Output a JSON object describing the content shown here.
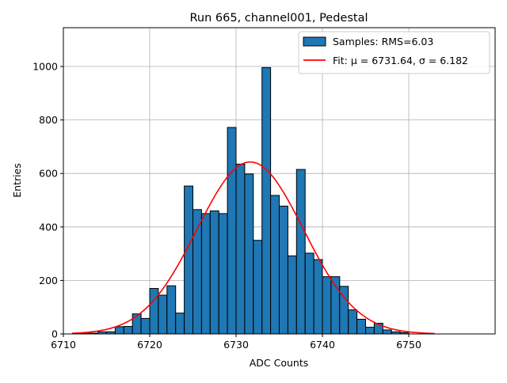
{
  "chart_data": {
    "type": "bar",
    "title": "Run 665, channel001, Pedestal",
    "xlabel": "ADC Counts",
    "ylabel": "Entries",
    "xlim": [
      6710,
      6760
    ],
    "ylim": [
      0,
      1145
    ],
    "xticks": [
      6710,
      6720,
      6730,
      6740,
      6750
    ],
    "yticks": [
      0,
      200,
      400,
      600,
      800,
      1000
    ],
    "grid": true,
    "legend_position": "top-right",
    "histogram": {
      "name": "Samples: RMS=6.03",
      "color": "#1f77b4",
      "edgecolor": "#000000",
      "bin_edges": [
        6711,
        6712,
        6713,
        6714,
        6715,
        6716,
        6717,
        6718,
        6719,
        6720,
        6721,
        6722,
        6723,
        6724,
        6725,
        6726,
        6727,
        6728,
        6729,
        6730,
        6731,
        6732,
        6733,
        6734,
        6735,
        6736,
        6737,
        6738,
        6739,
        6740,
        6741,
        6742,
        6743,
        6744,
        6745,
        6746,
        6747,
        6748,
        6749,
        6750,
        6751,
        6752
      ],
      "counts": [
        0,
        2,
        3,
        8,
        8,
        27,
        28,
        75,
        58,
        170,
        145,
        180,
        78,
        553,
        465,
        450,
        460,
        450,
        772,
        635,
        598,
        350,
        996,
        518,
        478,
        292,
        615,
        302,
        278,
        214,
        214,
        178,
        90,
        55,
        25,
        40,
        15,
        8,
        5,
        0,
        0
      ]
    },
    "fit": {
      "name": "Fit: μ = 6731.64, σ = 6.182",
      "color": "#ff0000",
      "mu": 6731.64,
      "sigma": 6.182,
      "peak": 643,
      "x_range": [
        6711,
        6753
      ]
    }
  }
}
